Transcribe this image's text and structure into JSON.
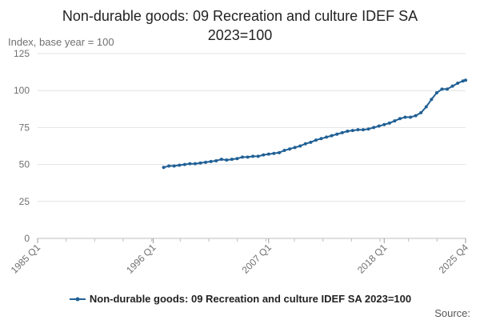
{
  "chart_data": {
    "type": "line",
    "title": "Non-durable goods: 09 Recreation and culture IDEF SA 2023=100",
    "ylabel": "Index, base year = 100",
    "xlabel": "",
    "ylim": [
      0,
      125
    ],
    "yticks": [
      0,
      25,
      50,
      75,
      100,
      125
    ],
    "xlim": [
      1985.0,
      2025.75
    ],
    "xticks": [
      {
        "label": "1985 Q1",
        "x": 1985.0
      },
      {
        "label": "1996 Q1",
        "x": 1996.0
      },
      {
        "label": "2007 Q1",
        "x": 2007.0
      },
      {
        "label": "2018 Q1",
        "x": 2018.0
      },
      {
        "label": "2025 Q4",
        "x": 2025.75
      }
    ],
    "grid": true,
    "legend_position": "bottom",
    "series": [
      {
        "name": "Non-durable goods: 09 Recreation and culture IDEF SA 2023=100",
        "color": "#206095",
        "points": [
          [
            1997.0,
            48.0
          ],
          [
            1997.5,
            49.0
          ],
          [
            1998.0,
            49.0
          ],
          [
            1998.5,
            49.5
          ],
          [
            1999.0,
            50.0
          ],
          [
            1999.5,
            50.5
          ],
          [
            2000.0,
            50.5
          ],
          [
            2000.5,
            51.0
          ],
          [
            2001.0,
            51.5
          ],
          [
            2001.5,
            52.0
          ],
          [
            2002.0,
            52.5
          ],
          [
            2002.5,
            53.5
          ],
          [
            2003.0,
            53.0
          ],
          [
            2003.5,
            53.5
          ],
          [
            2004.0,
            54.0
          ],
          [
            2004.5,
            55.0
          ],
          [
            2005.0,
            55.0
          ],
          [
            2005.5,
            55.5
          ],
          [
            2006.0,
            55.5
          ],
          [
            2006.5,
            56.5
          ],
          [
            2007.0,
            57.0
          ],
          [
            2007.5,
            57.5
          ],
          [
            2008.0,
            58.0
          ],
          [
            2008.5,
            59.5
          ],
          [
            2009.0,
            60.5
          ],
          [
            2009.5,
            61.5
          ],
          [
            2010.0,
            62.5
          ],
          [
            2010.5,
            64.0
          ],
          [
            2011.0,
            65.0
          ],
          [
            2011.5,
            66.5
          ],
          [
            2012.0,
            67.5
          ],
          [
            2012.5,
            68.5
          ],
          [
            2013.0,
            69.5
          ],
          [
            2013.5,
            70.5
          ],
          [
            2014.0,
            71.5
          ],
          [
            2014.5,
            72.5
          ],
          [
            2015.0,
            73.0
          ],
          [
            2015.5,
            73.5
          ],
          [
            2016.0,
            73.5
          ],
          [
            2016.5,
            74.0
          ],
          [
            2017.0,
            75.0
          ],
          [
            2017.5,
            76.0
          ],
          [
            2018.0,
            77.0
          ],
          [
            2018.5,
            78.0
          ],
          [
            2019.0,
            79.5
          ],
          [
            2019.5,
            81.0
          ],
          [
            2020.0,
            82.0
          ],
          [
            2020.5,
            82.0
          ],
          [
            2021.0,
            83.0
          ],
          [
            2021.5,
            85.0
          ],
          [
            2022.0,
            89.0
          ],
          [
            2022.5,
            94.0
          ],
          [
            2023.0,
            98.5
          ],
          [
            2023.5,
            101.0
          ],
          [
            2024.0,
            101.0
          ],
          [
            2024.5,
            103.0
          ],
          [
            2025.0,
            105.0
          ],
          [
            2025.5,
            106.5
          ],
          [
            2025.75,
            107.0
          ]
        ]
      }
    ]
  },
  "source_label": "Source:"
}
